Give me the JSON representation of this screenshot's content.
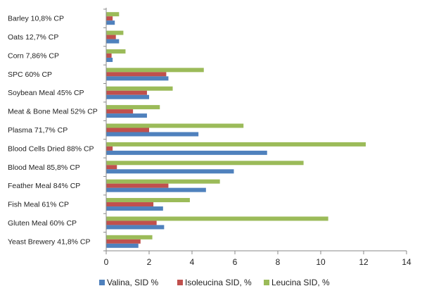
{
  "chart_data": {
    "type": "bar",
    "orientation": "horizontal",
    "categories": [
      "Barley 10,8% CP",
      "Oats 12,7% CP",
      "Corn 7,86% CP",
      "SPC 60% CP",
      "Soybean Meal 45% CP",
      "Meat & Bone Meal 52% CP",
      "Plasma 71,7% CP",
      "Blood Cells Dried 88% CP",
      "Blood Meal 85,8% CP",
      "Feather Meal 84% CP",
      "Fish Meal 61% CP",
      "Gluten Meal 60% CP",
      "Yeast Brewery 41,8% CP"
    ],
    "series": [
      {
        "name": "Valina, SID %",
        "color": "#4F81BD",
        "values": [
          0.4,
          0.6,
          0.3,
          2.9,
          2.0,
          1.9,
          4.3,
          7.5,
          5.95,
          4.65,
          2.65,
          2.7,
          1.5
        ]
      },
      {
        "name": "Isoleucina SID, %",
        "color": "#C0504D",
        "values": [
          0.3,
          0.45,
          0.25,
          2.8,
          1.9,
          1.25,
          2.0,
          0.3,
          0.5,
          2.9,
          2.2,
          2.35,
          1.6
        ]
      },
      {
        "name": "Leucina SID, %",
        "color": "#9BBB59",
        "values": [
          0.6,
          0.8,
          0.9,
          4.55,
          3.1,
          2.5,
          6.4,
          12.1,
          9.2,
          5.3,
          3.9,
          10.35,
          2.15
        ]
      }
    ],
    "xlim": [
      0,
      14
    ],
    "xticks": [
      "0",
      "2",
      "4",
      "6",
      "8",
      "10",
      "12",
      "14"
    ],
    "grid": false,
    "legend_position": "bottom"
  }
}
